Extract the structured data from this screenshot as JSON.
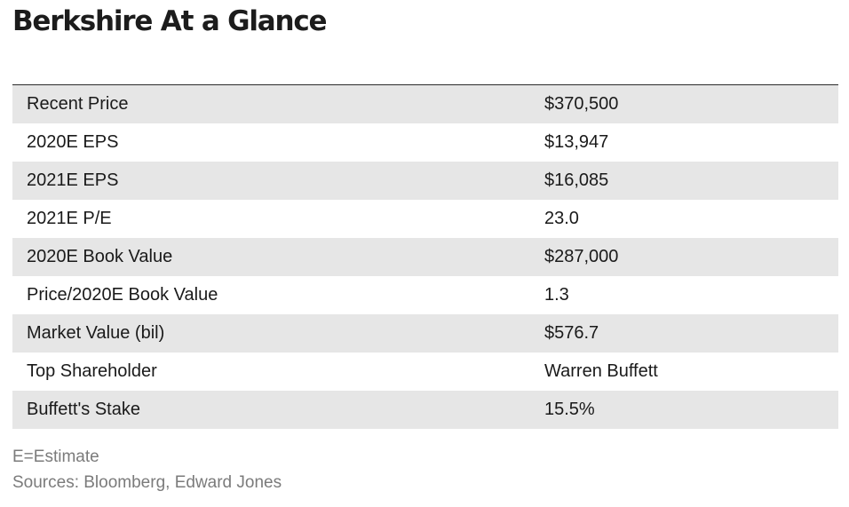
{
  "title": "Berkshire At a Glance",
  "rows": [
    {
      "label": "Recent Price",
      "value": "$370,500"
    },
    {
      "label": "2020E EPS",
      "value": "$13,947"
    },
    {
      "label": "2021E EPS",
      "value": "$16,085"
    },
    {
      "label": "2021E P/E",
      "value": "23.0"
    },
    {
      "label": "2020E Book Value",
      "value": "$287,000"
    },
    {
      "label": "Price/2020E Book Value",
      "value": "1.3"
    },
    {
      "label": "Market Value (bil)",
      "value": "$576.7"
    },
    {
      "label": "Top Shareholder",
      "value": "Warren Buffett"
    },
    {
      "label": "Buffett's Stake",
      "value": "15.5%"
    }
  ],
  "footnotes": {
    "estimate": "E=Estimate",
    "sources": "Sources: Bloomberg, Edward Jones"
  },
  "colors": {
    "row_shade": "#e6e6e6",
    "footnote_text": "#7b7b7b",
    "rule": "#2a2a2a"
  }
}
